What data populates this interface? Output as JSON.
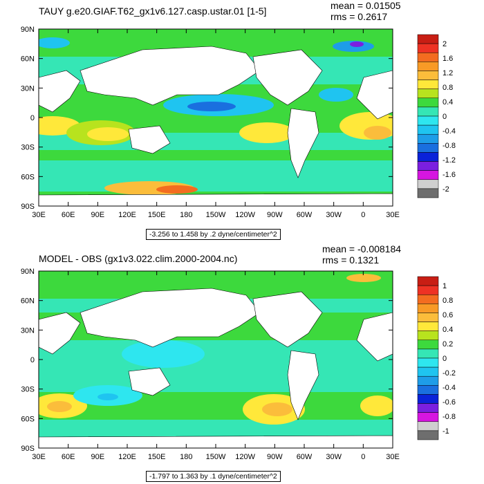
{
  "colors": {
    "land": "#ffffff",
    "coast_line": "#000000"
  },
  "panels": [
    {
      "title": "TAUY g.e20.GIAF.T62_gx1v6.127.casp.ustar.01 [1-5]",
      "mean_label": "mean = 0.01505",
      "rms_label": "rms = 0.2617",
      "range_note": "-3.256 to 1.458 by .2 dyne/centimeter^2",
      "lat_ticks": [
        "90N",
        "60N",
        "30N",
        "0",
        "30S",
        "60S",
        "90S"
      ],
      "lon_ticks": [
        "30E",
        "60E",
        "90E",
        "120E",
        "150E",
        "180",
        "150W",
        "120W",
        "90W",
        "60W",
        "30W",
        "0",
        "30E"
      ],
      "colorbar": {
        "labels": [
          "2",
          "1.6",
          "1.2",
          "0.8",
          "0.4",
          "0",
          "-0.4",
          "-0.8",
          "-1.2",
          "-1.6",
          "-2"
        ],
        "colors": [
          "#c81e14",
          "#ee3224",
          "#f36c20",
          "#f89a26",
          "#fbbd3b",
          "#ffe83a",
          "#b8e31e",
          "#3dd93d",
          "#35e6b5",
          "#2ee6ef",
          "#1fc4f0",
          "#1e9de8",
          "#1a6fdf",
          "#0a22d9",
          "#7b1fe0",
          "#d616e0",
          "#cfcfcf",
          "#6e6e6e"
        ]
      }
    },
    {
      "title": "MODEL - OBS (gx1v3.022.clim.2000-2004.nc)",
      "mean_label": "mean = -0.008184",
      "rms_label": "rms = 0.1321",
      "range_note": "-1.797 to 1.363 by .1 dyne/centimeter^2",
      "lat_ticks": [
        "90N",
        "60N",
        "30N",
        "0",
        "30S",
        "60S",
        "90S"
      ],
      "lon_ticks": [
        "30E",
        "60E",
        "90E",
        "120E",
        "150E",
        "180",
        "150W",
        "120W",
        "90W",
        "60W",
        "30W",
        "0",
        "30E"
      ],
      "colorbar": {
        "labels": [
          "1",
          "0.8",
          "0.6",
          "0.4",
          "0.2",
          "0",
          "-0.2",
          "-0.4",
          "-0.6",
          "-0.8",
          "-1"
        ],
        "colors": [
          "#c81e14",
          "#ee3224",
          "#f36c20",
          "#f89a26",
          "#fbbd3b",
          "#ffe83a",
          "#b8e31e",
          "#3dd93d",
          "#35e6b5",
          "#2ee6ef",
          "#1fc4f0",
          "#1e9de8",
          "#1a6fdf",
          "#0a22d9",
          "#7b1fe0",
          "#d616e0",
          "#cfcfcf",
          "#6e6e6e"
        ]
      }
    }
  ]
}
